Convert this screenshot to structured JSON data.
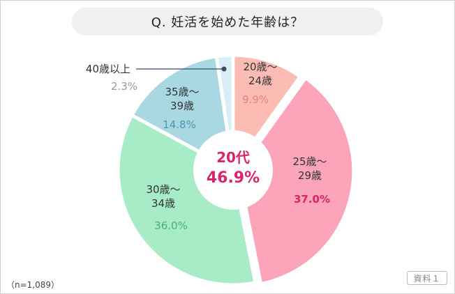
{
  "chart_data": {
    "type": "pie",
    "title": "Q. 妊活を始めた年齢は？",
    "center_label": {
      "top": "20代",
      "value": "46.9%"
    },
    "slices": [
      {
        "label_lines": [
          "20歳〜",
          "24歳"
        ],
        "value": 9.9,
        "value_label": "9.9%",
        "color": "#fbbcb4",
        "value_color": "#e0848a"
      },
      {
        "label_lines": [
          "25歳〜",
          "29歳"
        ],
        "value": 37.0,
        "value_label": "37.0%",
        "color": "#fba4ba",
        "value_color": "#d9256e"
      },
      {
        "label_lines": [
          "30歳〜",
          "34歳"
        ],
        "value": 36.0,
        "value_label": "36.0%",
        "color": "#a7ebc7",
        "value_color": "#4ab07f"
      },
      {
        "label_lines": [
          "35歳〜",
          "39歳"
        ],
        "value": 14.8,
        "value_label": "14.8%",
        "color": "#a9d8e3",
        "value_color": "#4a97b0"
      },
      {
        "label_lines": [
          "40歳以上"
        ],
        "value": 2.3,
        "value_label": "2.3%",
        "color": "#d7eff4",
        "value_color": "#8f9aa0"
      }
    ],
    "sample_size": "（n=1,089）",
    "source_badge": "資料１",
    "center_color": "#d9256e",
    "callout_color": "#3d4a6b"
  }
}
